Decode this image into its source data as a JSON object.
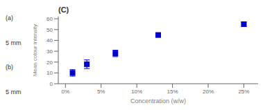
{
  "chart_data": {
    "type": "scatter",
    "title": "(C)",
    "xlabel": "Concentration (w/w)",
    "ylabel": "Mean colour intensity",
    "x": [
      1,
      3,
      7,
      13,
      25
    ],
    "values": [
      10,
      18,
      28,
      45,
      55
    ],
    "yerr": [
      3,
      4,
      3,
      2,
      2
    ],
    "xlim": [
      -1,
      27
    ],
    "ylim": [
      0,
      62
    ],
    "xticks": [
      {
        "value": 0,
        "label": "0%"
      },
      {
        "value": 5,
        "label": "5%"
      },
      {
        "value": 10,
        "label": "10%"
      },
      {
        "value": 15,
        "label": "15%"
      },
      {
        "value": 20,
        "label": "20%"
      },
      {
        "value": 25,
        "label": "25%"
      }
    ],
    "yticks": [
      0,
      10,
      20,
      30,
      40,
      50,
      60
    ],
    "color": "#0000cc",
    "marker": "square",
    "grid": false,
    "annotations": [
      "(a)",
      "5 mm",
      "(b)",
      "5 mm"
    ]
  }
}
